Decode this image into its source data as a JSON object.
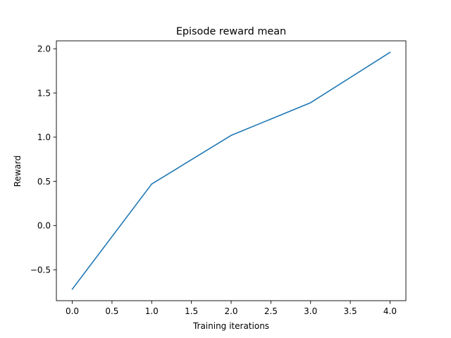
{
  "chart_data": {
    "type": "line",
    "title": "Episode reward mean",
    "xlabel": "Training iterations",
    "ylabel": "Reward",
    "x": [
      0,
      1,
      2,
      3,
      4
    ],
    "series": [
      {
        "values": [
          -0.72,
          0.47,
          1.02,
          1.39,
          1.96
        ],
        "color": "#1f77b4"
      }
    ],
    "xlim": [
      -0.2,
      4.2
    ],
    "ylim": [
      -0.85,
      2.09
    ],
    "xticks": [
      0,
      0.5,
      1,
      1.5,
      2,
      2.5,
      3,
      3.5,
      4
    ],
    "xtick_labels": [
      "0.0",
      "0.5",
      "1.0",
      "1.5",
      "2.0",
      "2.5",
      "3.0",
      "3.5",
      "4.0"
    ],
    "yticks": [
      -0.5,
      0,
      0.5,
      1,
      1.5,
      2
    ],
    "ytick_labels": [
      "−0.5",
      "0.0",
      "0.5",
      "1.0",
      "1.5",
      "2.0"
    ],
    "grid": false,
    "legend": false
  }
}
